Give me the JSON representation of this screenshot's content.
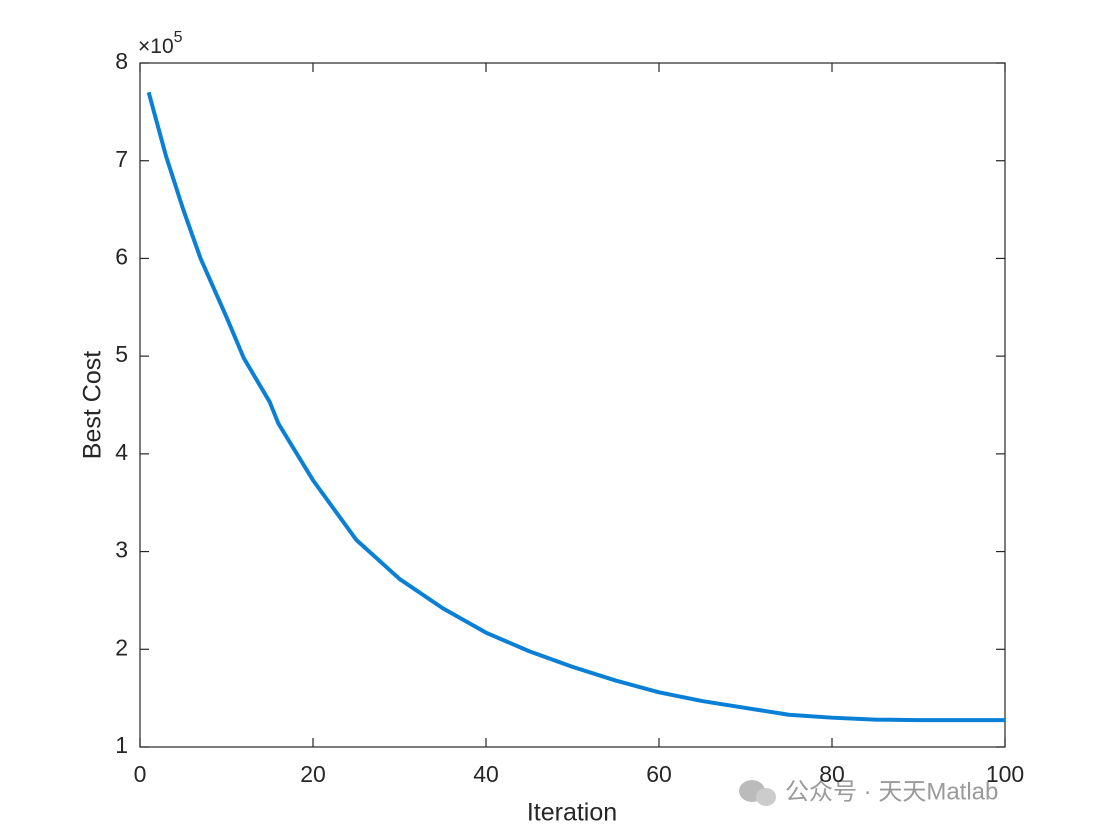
{
  "chart_data": {
    "type": "line",
    "x_label": "Iteration",
    "y_label": "Best Cost",
    "y_multiplier": {
      "base": "×10",
      "power": "5"
    },
    "x": [
      1,
      3,
      5,
      7,
      10,
      12,
      15,
      16,
      20,
      25,
      30,
      35,
      40,
      45,
      50,
      55,
      60,
      65,
      70,
      75,
      80,
      85,
      90,
      95,
      100
    ],
    "series": [
      {
        "color": "#0a7fd6",
        "values": [
          7.7,
          7.05,
          6.5,
          6.0,
          5.4,
          4.98,
          4.53,
          4.31,
          3.73,
          3.12,
          2.72,
          2.42,
          2.17,
          1.98,
          1.82,
          1.68,
          1.56,
          1.47,
          1.4,
          1.33,
          1.3,
          1.28,
          1.275,
          1.275,
          1.275
        ]
      }
    ],
    "xlim": [
      0,
      100
    ],
    "xticks": [
      0,
      20,
      40,
      60,
      80,
      100
    ],
    "ylim": [
      1,
      8
    ],
    "yticks": [
      1,
      2,
      3,
      4,
      5,
      6,
      7,
      8
    ],
    "grid": false
  },
  "watermark": "公众号 · 天天Matlab"
}
